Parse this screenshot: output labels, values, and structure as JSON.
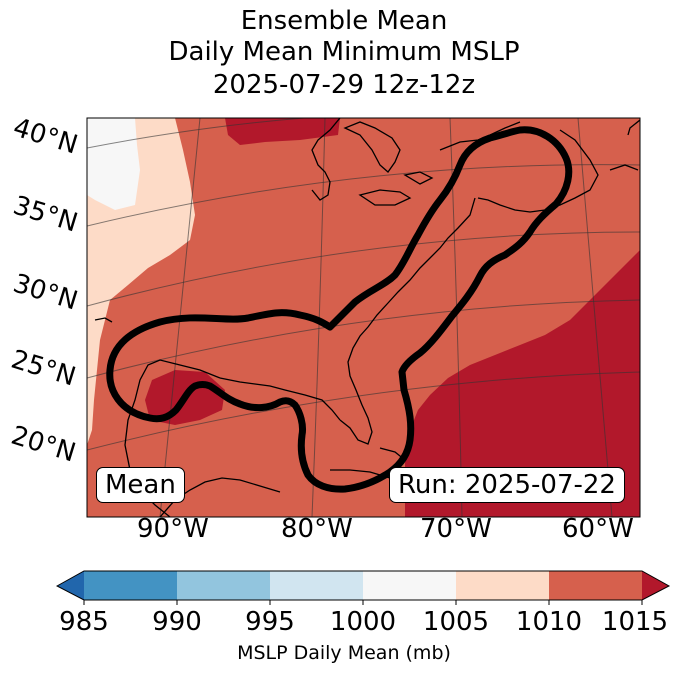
{
  "title": {
    "line1": "Ensemble Mean",
    "line2": "Daily Mean Minimum MSLP",
    "line3": "2025-07-29 12z-12z"
  },
  "map": {
    "lat_labels": [
      "40°N",
      "35°N",
      "30°N",
      "25°N",
      "20°N"
    ],
    "lon_labels": [
      "90°W",
      "80°W",
      "70°W",
      "60°W"
    ],
    "badge_left": "Mean",
    "badge_right": "Run: 2025-07-22",
    "colors": {
      "1000-1005": "#f7f7f7",
      "1005-1010": "#fddbc7",
      "1010-1015": "#d6604d",
      ">1015": "#b2182b",
      "contour": "#000000",
      "coast": "#000000"
    }
  },
  "colorbar": {
    "label": "MSLP Daily Mean (mb)",
    "ticks": [
      "985",
      "990",
      "995",
      "1000",
      "1005",
      "1010",
      "1015"
    ],
    "colors": [
      "#2166ac",
      "#4393c3",
      "#92c5de",
      "#d1e5f0",
      "#f7f7f7",
      "#fddbc7",
      "#d6604d",
      "#b2182b"
    ]
  }
}
